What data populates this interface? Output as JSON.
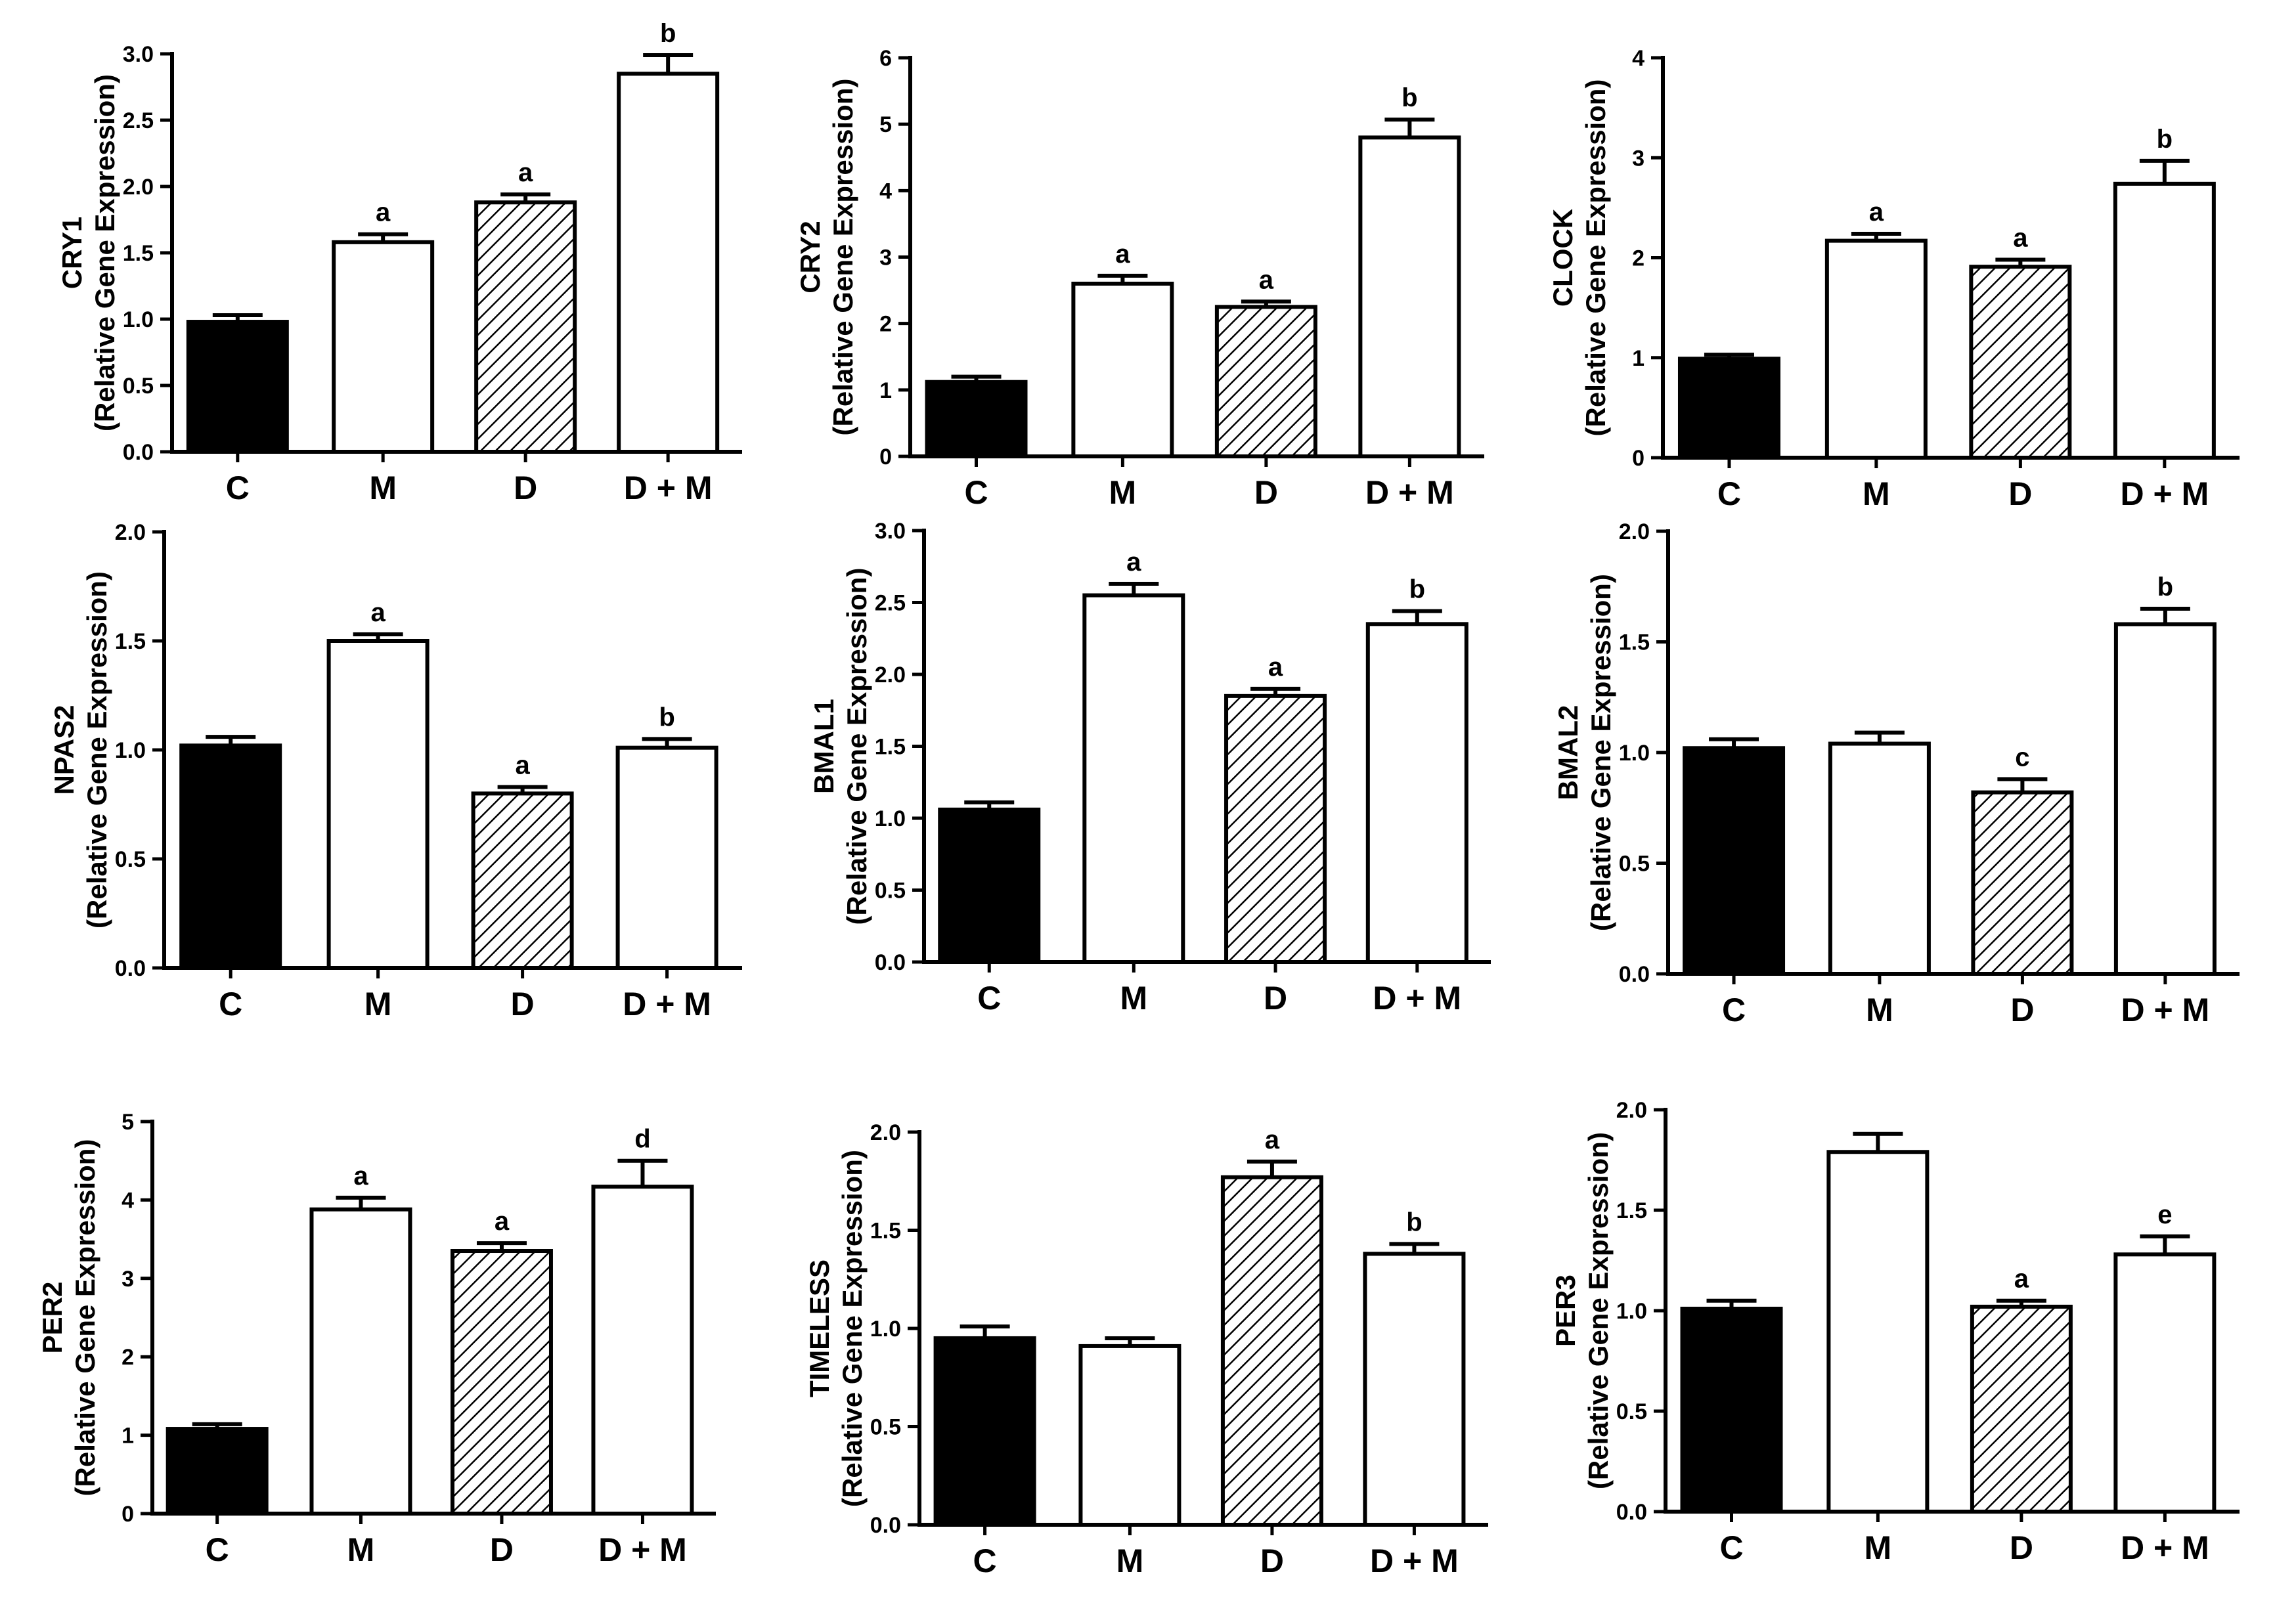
{
  "colors": {
    "control": "#000000",
    "open": "#ffffff",
    "hatch": "#000000",
    "axis": "#000000"
  },
  "chart_data": [
    {
      "type": "bar",
      "ylabel": "CRY1",
      "ylabel2": "(Relative Gene Expression)",
      "categories": [
        "C",
        "M",
        "D",
        "D + M"
      ],
      "fills": [
        "solid",
        "open",
        "hatched",
        "open"
      ],
      "values": [
        0.98,
        1.58,
        1.88,
        2.85
      ],
      "errors": [
        0.05,
        0.06,
        0.06,
        0.14
      ],
      "annotations": [
        "",
        "a",
        "a",
        "b"
      ],
      "ylim": [
        0,
        3
      ],
      "yticks": [
        0,
        0.5,
        1,
        1.5,
        2,
        2.5,
        3
      ],
      "ytick_labels": [
        "0.0",
        "0.5",
        "1.0",
        "1.5",
        "2.0",
        "2.5",
        "3.0"
      ]
    },
    {
      "type": "bar",
      "ylabel": "CRY2",
      "ylabel2": "(Relative Gene Expression)",
      "categories": [
        "C",
        "M",
        "D",
        "D + M"
      ],
      "fills": [
        "solid",
        "open",
        "hatched",
        "open"
      ],
      "values": [
        1.12,
        2.6,
        2.25,
        4.8
      ],
      "errors": [
        0.08,
        0.12,
        0.08,
        0.27
      ],
      "annotations": [
        "",
        "a",
        "a",
        "b"
      ],
      "ylim": [
        0,
        6
      ],
      "yticks": [
        0,
        1,
        2,
        3,
        4,
        5,
        6
      ],
      "ytick_labels": [
        "0",
        "1",
        "2",
        "3",
        "4",
        "5",
        "6"
      ]
    },
    {
      "type": "bar",
      "ylabel": "CLOCK",
      "ylabel2": "(Relative Gene Expression)",
      "categories": [
        "C",
        "M",
        "D",
        "D + M"
      ],
      "fills": [
        "solid",
        "open",
        "hatched",
        "open"
      ],
      "values": [
        0.99,
        2.17,
        1.91,
        2.74
      ],
      "errors": [
        0.04,
        0.07,
        0.07,
        0.23
      ],
      "annotations": [
        "",
        "a",
        "a",
        "b"
      ],
      "ylim": [
        0,
        4
      ],
      "yticks": [
        0,
        1,
        2,
        3,
        4
      ],
      "ytick_labels": [
        "0",
        "1",
        "2",
        "3",
        "4"
      ]
    },
    {
      "type": "bar",
      "ylabel": "NPAS2",
      "ylabel2": "(Relative Gene Expression)",
      "categories": [
        "C",
        "M",
        "D",
        "D + M"
      ],
      "fills": [
        "solid",
        "open",
        "hatched",
        "open"
      ],
      "values": [
        1.02,
        1.5,
        0.8,
        1.01
      ],
      "errors": [
        0.04,
        0.03,
        0.03,
        0.04
      ],
      "annotations": [
        "",
        "a",
        "a",
        "b"
      ],
      "ylim": [
        0,
        2
      ],
      "yticks": [
        0,
        0.5,
        1,
        1.5,
        2
      ],
      "ytick_labels": [
        "0.0",
        "0.5",
        "1.0",
        "1.5",
        "2.0"
      ]
    },
    {
      "type": "bar",
      "ylabel": "BMAL1",
      "ylabel2": "(Relative Gene Expression)",
      "categories": [
        "C",
        "M",
        "D",
        "D + M"
      ],
      "fills": [
        "solid",
        "open",
        "hatched",
        "open"
      ],
      "values": [
        1.06,
        2.55,
        1.85,
        2.35
      ],
      "errors": [
        0.05,
        0.08,
        0.05,
        0.09
      ],
      "annotations": [
        "",
        "a",
        "a",
        "b"
      ],
      "ylim": [
        0,
        3
      ],
      "yticks": [
        0,
        0.5,
        1,
        1.5,
        2,
        2.5,
        3
      ],
      "ytick_labels": [
        "0.0",
        "0.5",
        "1.0",
        "1.5",
        "2.0",
        "2.5",
        "3.0"
      ]
    },
    {
      "type": "bar",
      "ylabel": "BMAL2",
      "ylabel2": "(Relative Gene Expression)",
      "categories": [
        "C",
        "M",
        "D",
        "D + M"
      ],
      "fills": [
        "solid",
        "open",
        "hatched",
        "open"
      ],
      "values": [
        1.02,
        1.04,
        0.82,
        1.58
      ],
      "errors": [
        0.04,
        0.05,
        0.06,
        0.07
      ],
      "annotations": [
        "",
        "",
        "c",
        "b"
      ],
      "ylim": [
        0,
        2
      ],
      "yticks": [
        0,
        0.5,
        1,
        1.5,
        2
      ],
      "ytick_labels": [
        "0.0",
        "0.5",
        "1.0",
        "1.5",
        "2.0"
      ]
    },
    {
      "type": "bar",
      "ylabel": "PER2",
      "ylabel2": "(Relative Gene Expression)",
      "categories": [
        "C",
        "M",
        "D",
        "D + M"
      ],
      "fills": [
        "solid",
        "open",
        "hatched",
        "open"
      ],
      "values": [
        1.08,
        3.88,
        3.35,
        4.17
      ],
      "errors": [
        0.06,
        0.15,
        0.1,
        0.33
      ],
      "annotations": [
        "",
        "a",
        "a",
        "d"
      ],
      "ylim": [
        0,
        5
      ],
      "yticks": [
        0,
        1,
        2,
        3,
        4,
        5
      ],
      "ytick_labels": [
        "0",
        "1",
        "2",
        "3",
        "4",
        "5"
      ]
    },
    {
      "type": "bar",
      "ylabel": "TIMELESS",
      "ylabel2": "(Relative Gene Expression)",
      "categories": [
        "C",
        "M",
        "D",
        "D + M"
      ],
      "fills": [
        "solid",
        "open",
        "hatched",
        "open"
      ],
      "values": [
        0.95,
        0.91,
        1.77,
        1.38
      ],
      "errors": [
        0.06,
        0.04,
        0.08,
        0.05
      ],
      "annotations": [
        "",
        "",
        "a",
        "b"
      ],
      "ylim": [
        0,
        2
      ],
      "yticks": [
        0,
        0.5,
        1,
        1.5,
        2
      ],
      "ytick_labels": [
        "0.0",
        "0.5",
        "1.0",
        "1.5",
        "2.0"
      ]
    },
    {
      "type": "bar",
      "ylabel": "PER3",
      "ylabel2": "(Relative Gene Expression)",
      "categories": [
        "C",
        "M",
        "D",
        "D + M"
      ],
      "fills": [
        "solid",
        "open",
        "hatched",
        "open"
      ],
      "values": [
        1.01,
        1.79,
        1.02,
        1.28
      ],
      "errors": [
        0.04,
        0.09,
        0.03,
        0.09
      ],
      "annotations": [
        "",
        "",
        "a",
        "e"
      ],
      "ylim": [
        0,
        2
      ],
      "yticks": [
        0,
        0.5,
        1,
        1.5,
        2
      ],
      "ytick_labels": [
        "0.0",
        "0.5",
        "1.0",
        "1.5",
        "2.0"
      ]
    }
  ]
}
